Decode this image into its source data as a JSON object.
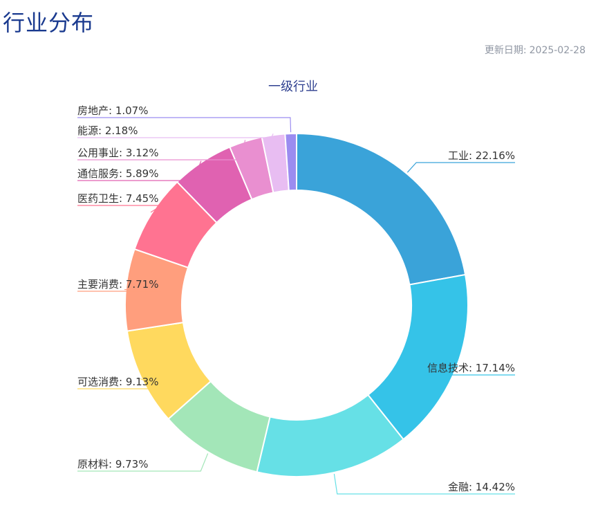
{
  "header": {
    "title": "行业分布",
    "update_label": "更新日期:",
    "update_date": "2025-02-28"
  },
  "chart_data": {
    "type": "pie",
    "variant": "donut",
    "title": "一级行业",
    "slices": [
      {
        "label": "工业",
        "value": 22.16,
        "color": "#3aa3d9",
        "display": "工业: 22.16%"
      },
      {
        "label": "信息技术",
        "value": 17.14,
        "color": "#35c3e8",
        "display": "信息技术: 17.14%"
      },
      {
        "label": "金融",
        "value": 14.42,
        "color": "#66e0e6",
        "display": "金融: 14.42%"
      },
      {
        "label": "原材料",
        "value": 9.73,
        "color": "#a3e6b8",
        "display": "原材料: 9.73%"
      },
      {
        "label": "可选消费",
        "value": 9.13,
        "color": "#ffd95e",
        "display": "可选消费: 9.13%"
      },
      {
        "label": "主要消费",
        "value": 7.71,
        "color": "#ff9e7d",
        "display": "主要消费: 7.71%"
      },
      {
        "label": "医药卫生",
        "value": 7.45,
        "color": "#ff7391",
        "display": "医药卫生: 7.45%"
      },
      {
        "label": "通信服务",
        "value": 5.89,
        "color": "#e062b1",
        "display": "通信服务: 5.89%"
      },
      {
        "label": "公用事业",
        "value": 3.12,
        "color": "#e98fd0",
        "display": "公用事业: 3.12%"
      },
      {
        "label": "能源",
        "value": 2.18,
        "color": "#e8bdf2",
        "display": "能源: 2.18%"
      },
      {
        "label": "房地产",
        "value": 1.07,
        "color": "#9b8cf0",
        "display": "房地产: 1.07%"
      }
    ]
  }
}
